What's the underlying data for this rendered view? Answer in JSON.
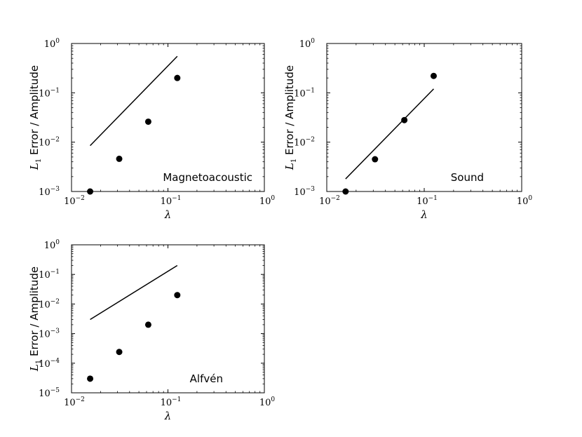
{
  "chart_data": [
    {
      "type": "scatter",
      "panel_label": "Magnetoacoustic",
      "xscale": "log",
      "yscale": "log",
      "xlim": [
        0.01,
        1
      ],
      "ylim": [
        0.001,
        1
      ],
      "xlabel": "λ",
      "ylabel_symbol": "L",
      "ylabel_subscript": "1",
      "ylabel_rest": " Error / Amplitude",
      "xticks": [
        {
          "value": 0.01,
          "base": "10",
          "exp": "−2"
        },
        {
          "value": 0.1,
          "base": "10",
          "exp": "−1"
        },
        {
          "value": 1,
          "base": "10",
          "exp": "0"
        }
      ],
      "yticks": [
        {
          "value": 0.001,
          "base": "10",
          "exp": "−3"
        },
        {
          "value": 0.01,
          "base": "10",
          "exp": "−2"
        },
        {
          "value": 0.1,
          "base": "10",
          "exp": "−1"
        },
        {
          "value": 1,
          "base": "10",
          "exp": "0"
        }
      ],
      "points": {
        "x": [
          0.0156,
          0.03125,
          0.0625,
          0.125
        ],
        "y": [
          0.001,
          0.0046,
          0.026,
          0.2
        ]
      },
      "reference_line": {
        "x": [
          0.0156,
          0.125
        ],
        "y": [
          0.0085,
          0.55
        ]
      }
    },
    {
      "type": "scatter",
      "panel_label": "Sound",
      "xscale": "log",
      "yscale": "log",
      "xlim": [
        0.01,
        1
      ],
      "ylim": [
        0.001,
        1
      ],
      "xlabel": "λ",
      "ylabel_symbol": "L",
      "ylabel_subscript": "1",
      "ylabel_rest": " Error / Amplitude",
      "xticks": [
        {
          "value": 0.01,
          "base": "10",
          "exp": "−2"
        },
        {
          "value": 0.1,
          "base": "10",
          "exp": "−1"
        },
        {
          "value": 1,
          "base": "10",
          "exp": "0"
        }
      ],
      "yticks": [
        {
          "value": 0.001,
          "base": "10",
          "exp": "−3"
        },
        {
          "value": 0.01,
          "base": "10",
          "exp": "−2"
        },
        {
          "value": 0.1,
          "base": "10",
          "exp": "−1"
        },
        {
          "value": 1,
          "base": "10",
          "exp": "0"
        }
      ],
      "points": {
        "x": [
          0.0156,
          0.03125,
          0.0625,
          0.125
        ],
        "y": [
          0.001,
          0.0045,
          0.028,
          0.22
        ]
      },
      "reference_line": {
        "x": [
          0.0156,
          0.125
        ],
        "y": [
          0.0018,
          0.12
        ]
      }
    },
    {
      "type": "scatter",
      "panel_label": "Alfvén",
      "xscale": "log",
      "yscale": "log",
      "xlim": [
        0.01,
        1
      ],
      "ylim": [
        1e-05,
        1
      ],
      "xlabel": "λ",
      "ylabel_symbol": "L",
      "ylabel_subscript": "1",
      "ylabel_rest": " Error / Amplitude",
      "xticks": [
        {
          "value": 0.01,
          "base": "10",
          "exp": "−2"
        },
        {
          "value": 0.1,
          "base": "10",
          "exp": "−1"
        },
        {
          "value": 1,
          "base": "10",
          "exp": "0"
        }
      ],
      "yticks": [
        {
          "value": 1e-05,
          "base": "10",
          "exp": "−5"
        },
        {
          "value": 0.0001,
          "base": "10",
          "exp": "−4"
        },
        {
          "value": 0.001,
          "base": "10",
          "exp": "−3"
        },
        {
          "value": 0.01,
          "base": "10",
          "exp": "−2"
        },
        {
          "value": 0.1,
          "base": "10",
          "exp": "−1"
        },
        {
          "value": 1,
          "base": "10",
          "exp": "0"
        }
      ],
      "points": {
        "x": [
          0.0156,
          0.03125,
          0.0625,
          0.125
        ],
        "y": [
          3e-05,
          0.00024,
          0.002,
          0.02
        ]
      },
      "reference_line": {
        "x": [
          0.0156,
          0.125
        ],
        "y": [
          0.003,
          0.2
        ]
      }
    }
  ]
}
